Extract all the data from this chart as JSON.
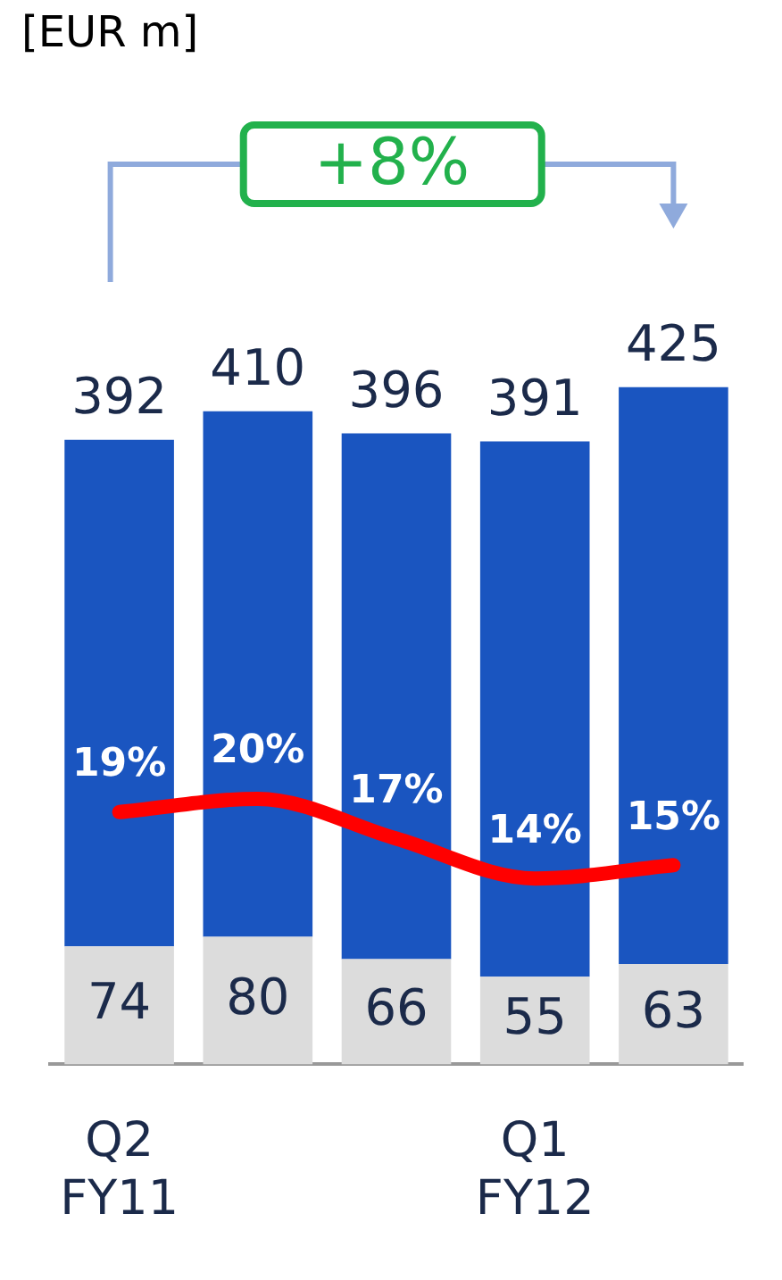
{
  "chart_data": {
    "type": "bar",
    "stacked": true,
    "categories": [
      "Q2 FY11",
      null,
      null,
      "Q1 FY12",
      null
    ],
    "series": [
      {
        "color": "#dcdcdc",
        "values": [
          74,
          80,
          66,
          55,
          63
        ],
        "value_labels": [
          "74",
          "80",
          "66",
          "55",
          "63"
        ]
      },
      {
        "color": "#1a55c0",
        "values": [
          318,
          330,
          330,
          336,
          362
        ]
      },
      {
        "type": "line",
        "axis": "y2",
        "color": "#ff0000",
        "values": [
          19,
          20,
          17,
          14,
          15
        ],
        "value_labels": [
          "19%",
          "20%",
          "17%",
          "14%",
          "15%"
        ]
      }
    ],
    "totals": [
      "392",
      "410",
      "396",
      "391",
      "425"
    ],
    "tick_labels": "x",
    "grid": false,
    "legend": false,
    "marker": "none",
    "annotations": [
      "[EUR m]",
      "+8%"
    ]
  }
}
